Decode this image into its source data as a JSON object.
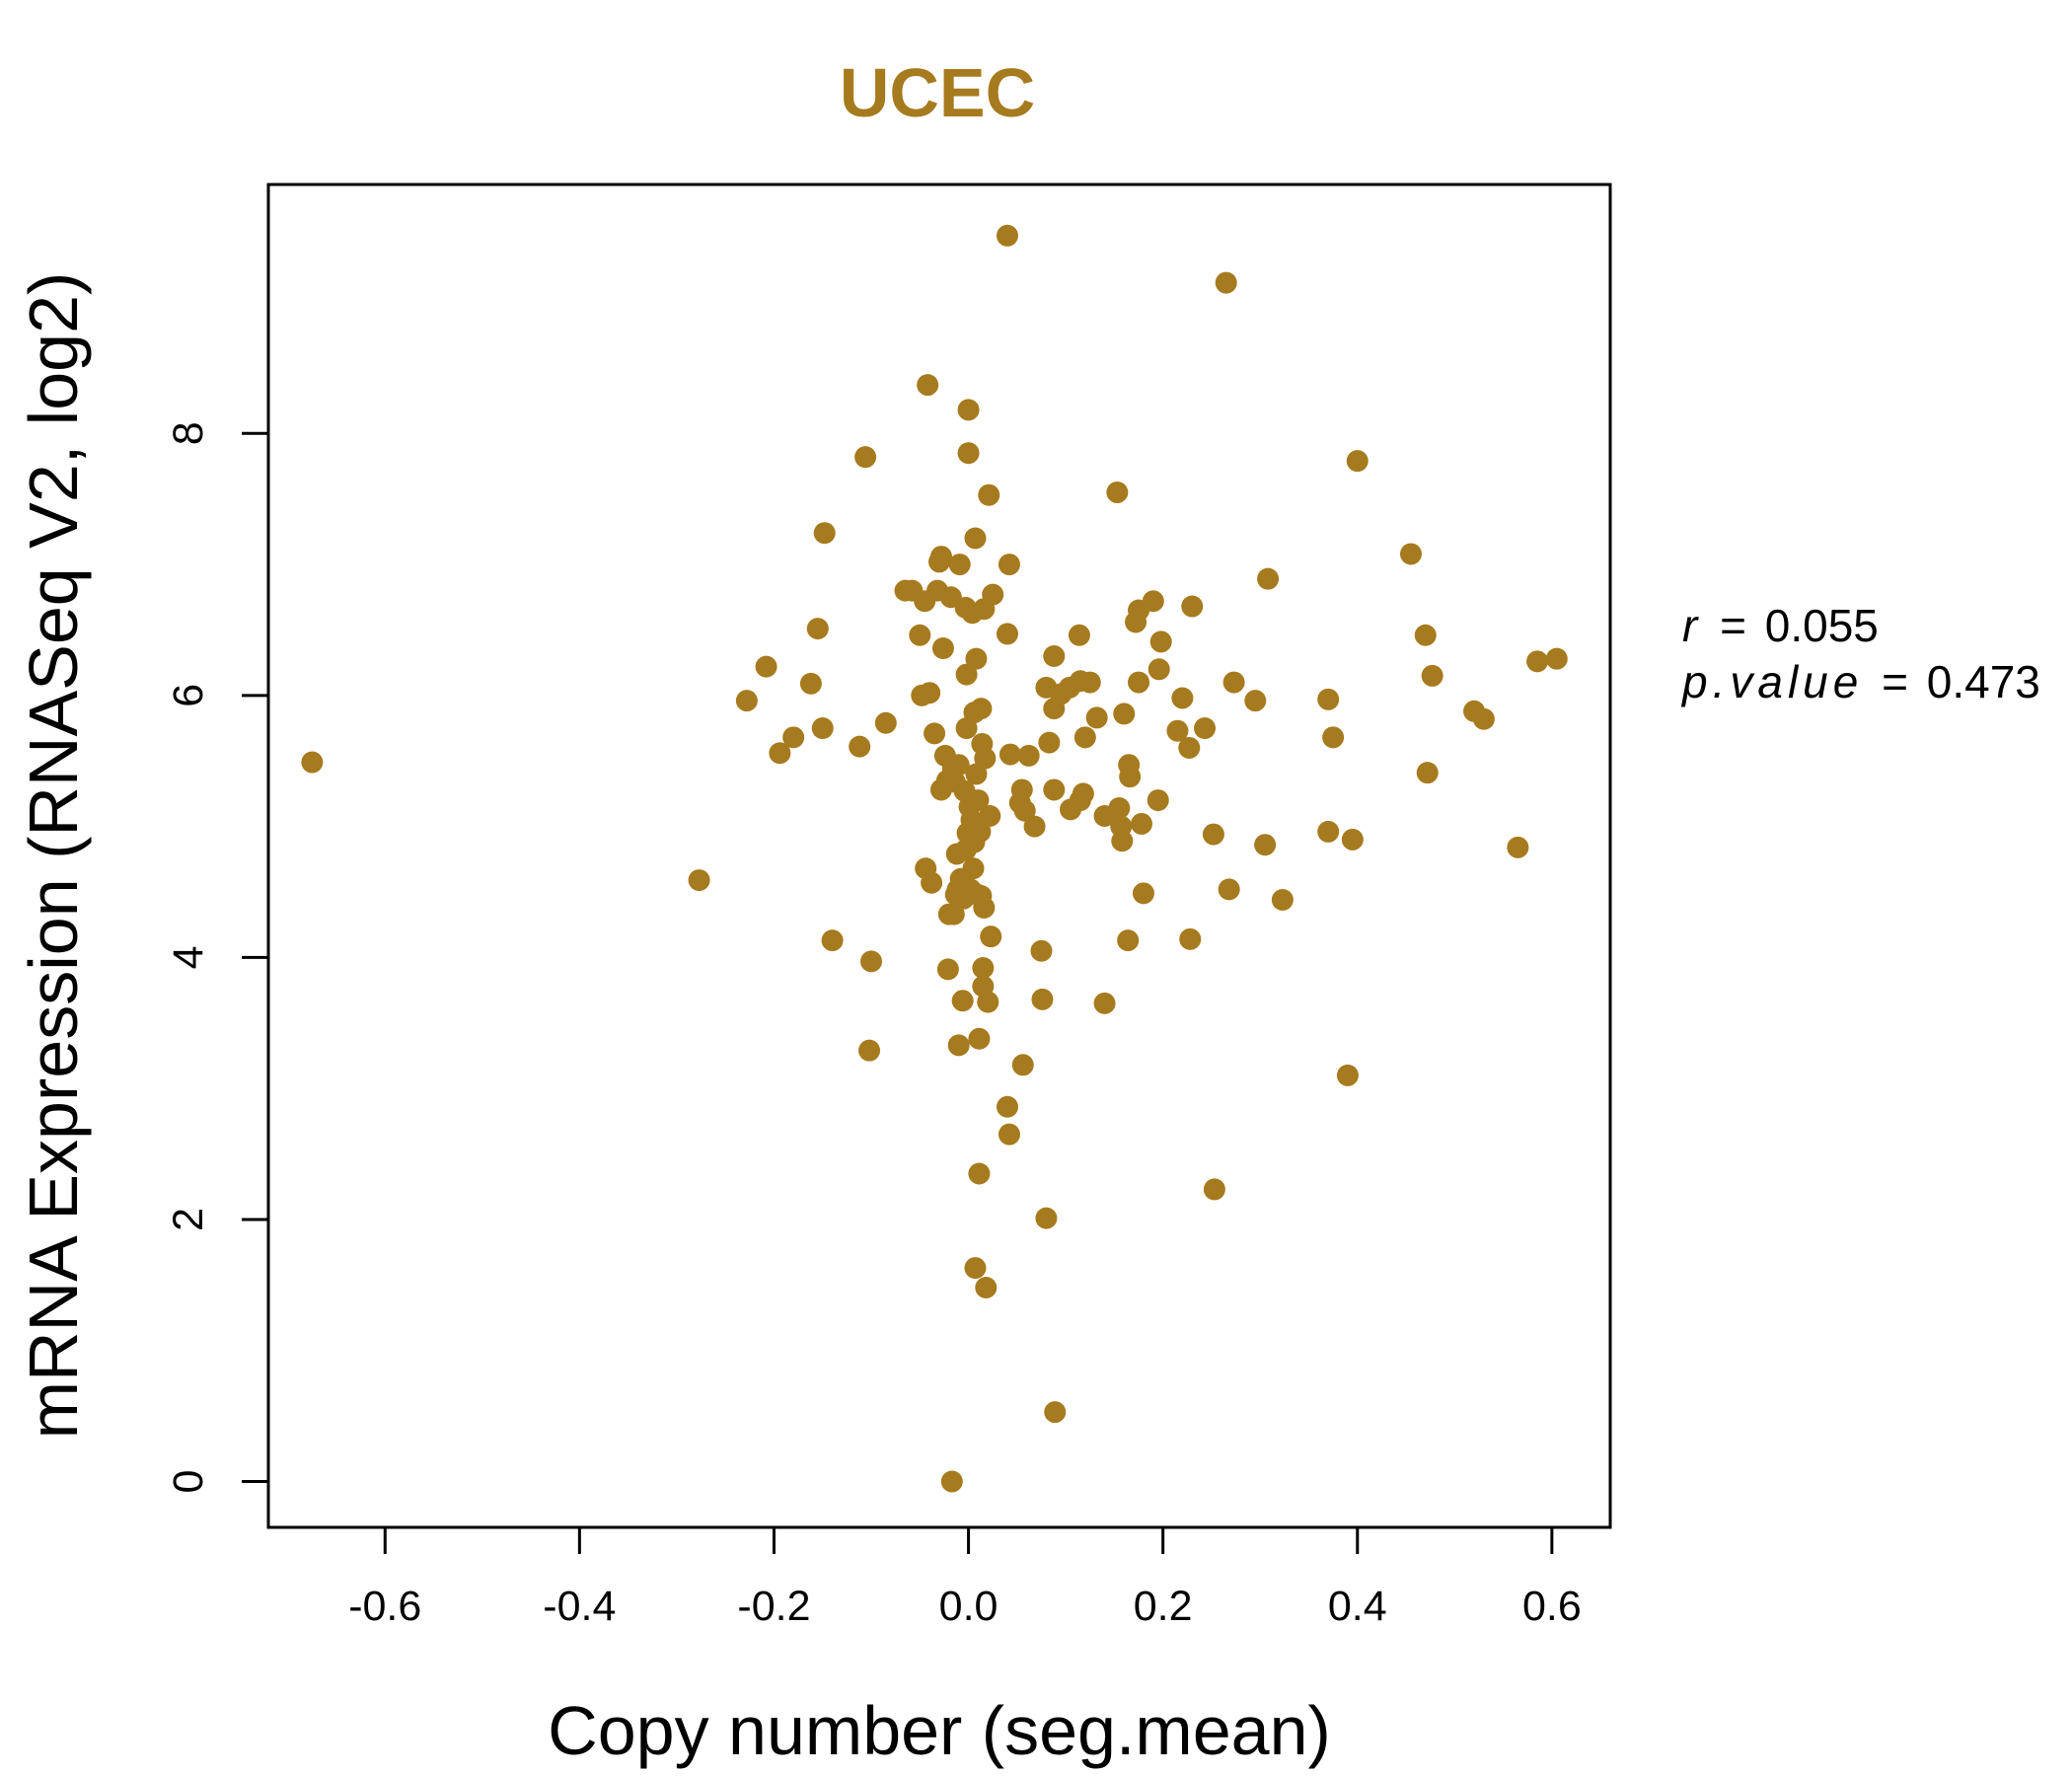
{
  "chart_data": {
    "type": "scatter",
    "title": "UCEC",
    "xlabel": "Copy number (seg.mean)",
    "ylabel": "mRNA Expression (RNASeq V2, log2)",
    "xlim": [
      -0.72,
      0.66
    ],
    "ylim": [
      -0.35,
      9.9
    ],
    "x_ticks": [
      -0.6,
      -0.4,
      -0.2,
      0.0,
      0.2,
      0.4,
      0.6
    ],
    "x_tick_labels": [
      "-0.6",
      "-0.4",
      "-0.2",
      "0.0",
      "0.2",
      "0.4",
      "0.6"
    ],
    "y_ticks": [
      0,
      2,
      4,
      6,
      8
    ],
    "y_tick_labels": [
      "0",
      "2",
      "4",
      "6",
      "8"
    ],
    "grid": false,
    "colors": {
      "point": "#A67A1E",
      "title": "#A67A1E",
      "axis": "#000000"
    },
    "stats": {
      "r_label": "r",
      "r_value": "0.055",
      "p_label": "p.value",
      "p_value": "0.473"
    },
    "series": [
      {
        "points": [
          [
            -0.675,
            5.49
          ],
          [
            -0.277,
            4.59
          ],
          [
            -0.228,
            5.96
          ],
          [
            -0.208,
            6.22
          ],
          [
            -0.194,
            5.56
          ],
          [
            -0.18,
            5.68
          ],
          [
            -0.162,
            6.09
          ],
          [
            -0.155,
            6.51
          ],
          [
            -0.15,
            5.75
          ],
          [
            -0.148,
            7.24
          ],
          [
            -0.14,
            4.13
          ],
          [
            -0.112,
            5.61
          ],
          [
            -0.106,
            7.82
          ],
          [
            -0.1,
            3.97
          ],
          [
            -0.102,
            3.29
          ],
          [
            -0.085,
            5.79
          ],
          [
            -0.065,
            6.8
          ],
          [
            -0.058,
            6.8
          ],
          [
            -0.05,
            6.46
          ],
          [
            -0.048,
            6.0
          ],
          [
            -0.045,
            6.72
          ],
          [
            -0.044,
            4.68
          ],
          [
            -0.042,
            8.37
          ],
          [
            -0.04,
            6.02
          ],
          [
            -0.038,
            4.57
          ],
          [
            -0.035,
            5.71
          ],
          [
            -0.032,
            6.8
          ],
          [
            -0.03,
            7.02
          ],
          [
            -0.028,
            7.06
          ],
          [
            -0.028,
            5.28
          ],
          [
            -0.026,
            6.36
          ],
          [
            -0.024,
            5.54
          ],
          [
            -0.022,
            5.35
          ],
          [
            -0.021,
            3.91
          ],
          [
            -0.02,
            4.33
          ],
          [
            -0.018,
            6.75
          ],
          [
            -0.017,
            0.0
          ],
          [
            -0.016,
            5.44
          ],
          [
            -0.015,
            4.33
          ],
          [
            -0.014,
            5.34
          ],
          [
            -0.013,
            4.48
          ],
          [
            -0.012,
            4.79
          ],
          [
            -0.011,
            4.52
          ],
          [
            -0.01,
            5.47
          ],
          [
            -0.01,
            3.33
          ],
          [
            -0.009,
            7.0
          ],
          [
            -0.008,
            4.6
          ],
          [
            -0.007,
            4.58
          ],
          [
            -0.006,
            3.67
          ],
          [
            -0.005,
            4.45
          ],
          [
            -0.004,
            5.27
          ],
          [
            -0.003,
            6.67
          ],
          [
            -0.003,
            4.82
          ],
          [
            -0.002,
            6.16
          ],
          [
            -0.002,
            5.75
          ],
          [
            -0.001,
            4.95
          ],
          [
            0.0,
            8.18
          ],
          [
            0.0,
            7.85
          ],
          [
            0.001,
            5.15
          ],
          [
            0.002,
            4.52
          ],
          [
            0.003,
            5.05
          ],
          [
            0.004,
            6.63
          ],
          [
            0.005,
            4.68
          ],
          [
            0.005,
            4.92
          ],
          [
            0.006,
            5.87
          ],
          [
            0.006,
            4.88
          ],
          [
            0.007,
            7.2
          ],
          [
            0.007,
            1.63
          ],
          [
            0.008,
            6.28
          ],
          [
            0.008,
            5.4
          ],
          [
            0.009,
            4.48
          ],
          [
            0.01,
            5.2
          ],
          [
            0.011,
            3.38
          ],
          [
            0.011,
            2.35
          ],
          [
            0.012,
            4.96
          ],
          [
            0.013,
            5.9
          ],
          [
            0.013,
            4.47
          ],
          [
            0.014,
            5.63
          ],
          [
            0.015,
            3.92
          ],
          [
            0.015,
            3.78
          ],
          [
            0.016,
            6.66
          ],
          [
            0.016,
            4.38
          ],
          [
            0.017,
            5.52
          ],
          [
            0.018,
            1.48
          ],
          [
            0.02,
            3.66
          ],
          [
            0.021,
            7.53
          ],
          [
            0.022,
            5.08
          ],
          [
            0.023,
            4.16
          ],
          [
            0.025,
            6.77
          ],
          [
            0.04,
            9.51
          ],
          [
            0.04,
            6.47
          ],
          [
            0.04,
            2.86
          ],
          [
            0.042,
            7.0
          ],
          [
            0.042,
            2.65
          ],
          [
            0.043,
            5.55
          ],
          [
            0.053,
            5.18
          ],
          [
            0.055,
            5.28
          ],
          [
            0.056,
            3.18
          ],
          [
            0.058,
            5.12
          ],
          [
            0.062,
            5.54
          ],
          [
            0.068,
            5.0
          ],
          [
            0.075,
            4.05
          ],
          [
            0.076,
            3.68
          ],
          [
            0.08,
            2.01
          ],
          [
            0.08,
            6.06
          ],
          [
            0.083,
            5.64
          ],
          [
            0.088,
            6.3
          ],
          [
            0.088,
            5.9
          ],
          [
            0.088,
            5.28
          ],
          [
            0.089,
            0.53
          ],
          [
            0.095,
            6.01
          ],
          [
            0.104,
            6.06
          ],
          [
            0.105,
            5.13
          ],
          [
            0.114,
            6.46
          ],
          [
            0.115,
            5.2
          ],
          [
            0.115,
            6.11
          ],
          [
            0.118,
            5.25
          ],
          [
            0.12,
            5.68
          ],
          [
            0.125,
            6.1
          ],
          [
            0.132,
            5.83
          ],
          [
            0.14,
            3.65
          ],
          [
            0.14,
            5.08
          ],
          [
            0.153,
            7.55
          ],
          [
            0.155,
            5.14
          ],
          [
            0.157,
            5.0
          ],
          [
            0.158,
            4.89
          ],
          [
            0.16,
            5.86
          ],
          [
            0.164,
            4.13
          ],
          [
            0.165,
            5.47
          ],
          [
            0.166,
            5.38
          ],
          [
            0.172,
            6.56
          ],
          [
            0.175,
            6.1
          ],
          [
            0.175,
            6.65
          ],
          [
            0.178,
            5.02
          ],
          [
            0.18,
            4.49
          ],
          [
            0.19,
            6.72
          ],
          [
            0.195,
            5.2
          ],
          [
            0.196,
            6.2
          ],
          [
            0.198,
            6.41
          ],
          [
            0.215,
            5.73
          ],
          [
            0.22,
            5.98
          ],
          [
            0.227,
            5.6
          ],
          [
            0.228,
            4.14
          ],
          [
            0.23,
            6.68
          ],
          [
            0.243,
            5.75
          ],
          [
            0.252,
            4.94
          ],
          [
            0.253,
            2.23
          ],
          [
            0.265,
            9.15
          ],
          [
            0.268,
            4.52
          ],
          [
            0.273,
            6.1
          ],
          [
            0.295,
            5.96
          ],
          [
            0.305,
            4.86
          ],
          [
            0.308,
            6.89
          ],
          [
            0.323,
            4.44
          ],
          [
            0.37,
            5.97
          ],
          [
            0.37,
            4.96
          ],
          [
            0.375,
            5.68
          ],
          [
            0.39,
            3.1
          ],
          [
            0.395,
            4.9
          ],
          [
            0.4,
            7.79
          ],
          [
            0.455,
            7.08
          ],
          [
            0.47,
            6.46
          ],
          [
            0.472,
            5.41
          ],
          [
            0.477,
            6.15
          ],
          [
            0.52,
            5.88
          ],
          [
            0.53,
            5.82
          ],
          [
            0.565,
            4.84
          ],
          [
            0.585,
            6.26
          ],
          [
            0.605,
            6.28
          ]
        ]
      }
    ]
  }
}
